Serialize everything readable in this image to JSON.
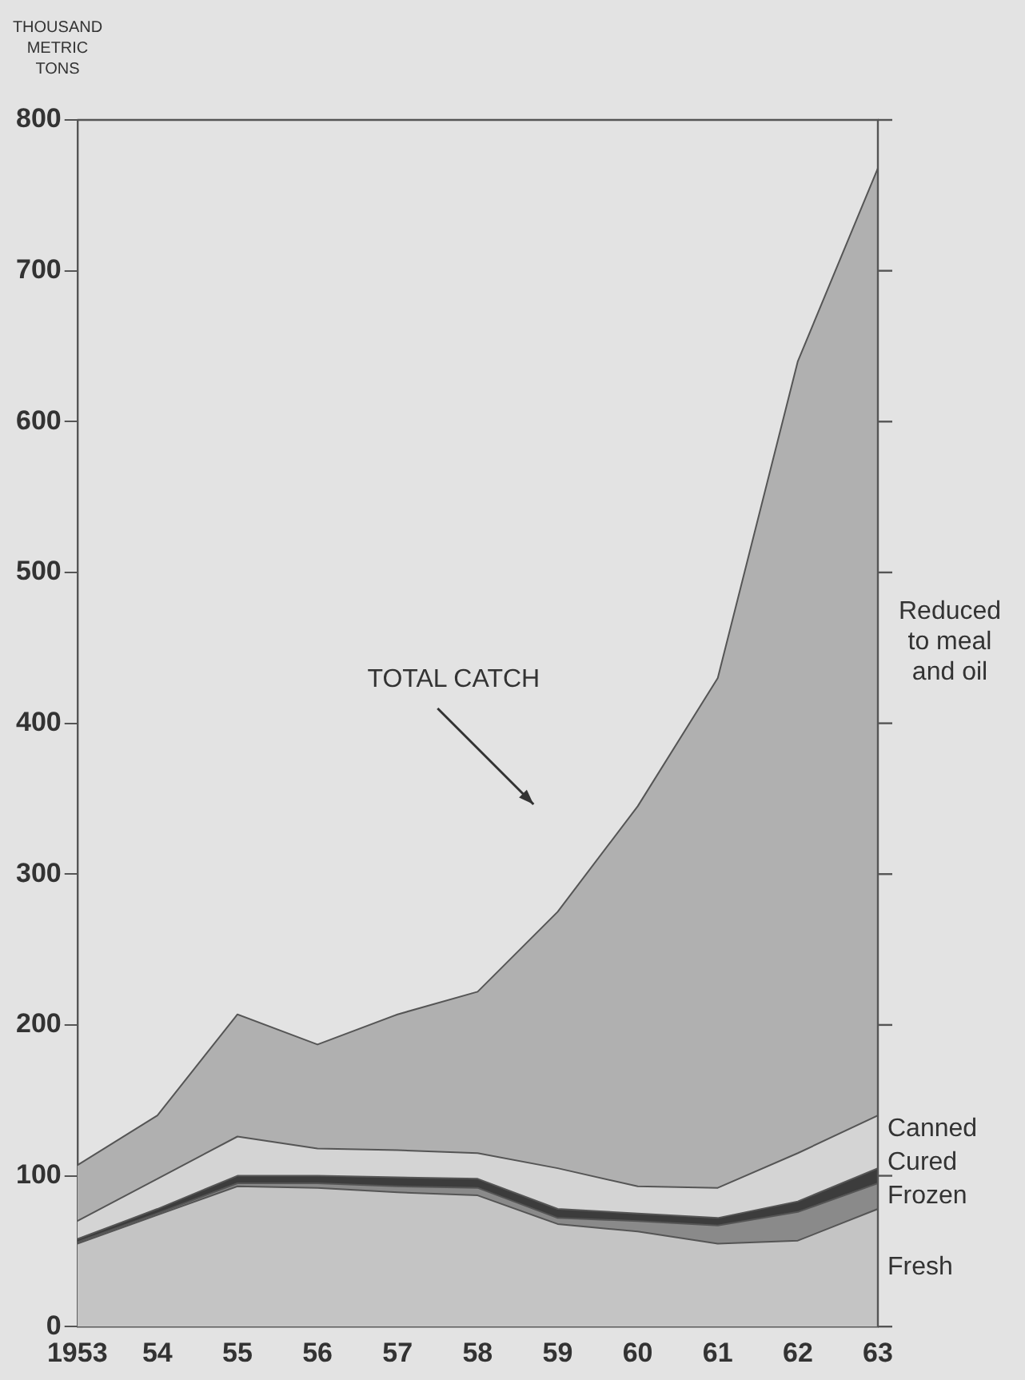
{
  "chart_data": {
    "type": "area",
    "stacked": true,
    "ylabel": "THOUSAND METRIC TONS",
    "x": [
      1953,
      1954,
      1955,
      1956,
      1957,
      1958,
      1959,
      1960,
      1961,
      1962,
      1963
    ],
    "xlim": [
      1953,
      1963
    ],
    "xticks": [
      1953,
      {
        "value": 1954,
        "label": "54"
      },
      {
        "value": 1955,
        "label": "55"
      },
      {
        "value": 1956,
        "label": "56"
      },
      {
        "value": 1957,
        "label": "57"
      },
      {
        "value": 1958,
        "label": "58"
      },
      {
        "value": 1959,
        "label": "59"
      },
      {
        "value": 1960,
        "label": "60"
      },
      {
        "value": 1961,
        "label": "61"
      },
      {
        "value": 1962,
        "label": "62"
      },
      {
        "value": 1963,
        "label": "63"
      }
    ],
    "ylim": [
      0,
      800
    ],
    "yticks": [
      0,
      100,
      200,
      300,
      400,
      500,
      600,
      700,
      800
    ],
    "grid": false,
    "legend": "right",
    "series": [
      {
        "name": "Fresh",
        "color": "#c4c4c4",
        "values": [
          55,
          74,
          93,
          92,
          89,
          87,
          68,
          63,
          55,
          57,
          78
        ]
      },
      {
        "name": "Frozen",
        "color": "#8a8a8a",
        "values": [
          1,
          1,
          2,
          3,
          4,
          5,
          4,
          7,
          12,
          19,
          17
        ]
      },
      {
        "name": "Cured",
        "color": "#3c3c3c",
        "values": [
          2,
          3,
          5,
          5,
          6,
          6,
          6,
          5,
          5,
          7,
          10
        ]
      },
      {
        "name": "Canned",
        "color": "#d4d4d4",
        "values": [
          12,
          20,
          26,
          18,
          18,
          17,
          27,
          18,
          20,
          32,
          35
        ]
      },
      {
        "name": "Reduced to meal and oil",
        "color": "#b0b0b0",
        "values": [
          37,
          42,
          81,
          69,
          90,
          107,
          170,
          252,
          338,
          525,
          628
        ]
      }
    ],
    "annotations": [
      "TOTAL CATCH"
    ]
  }
}
